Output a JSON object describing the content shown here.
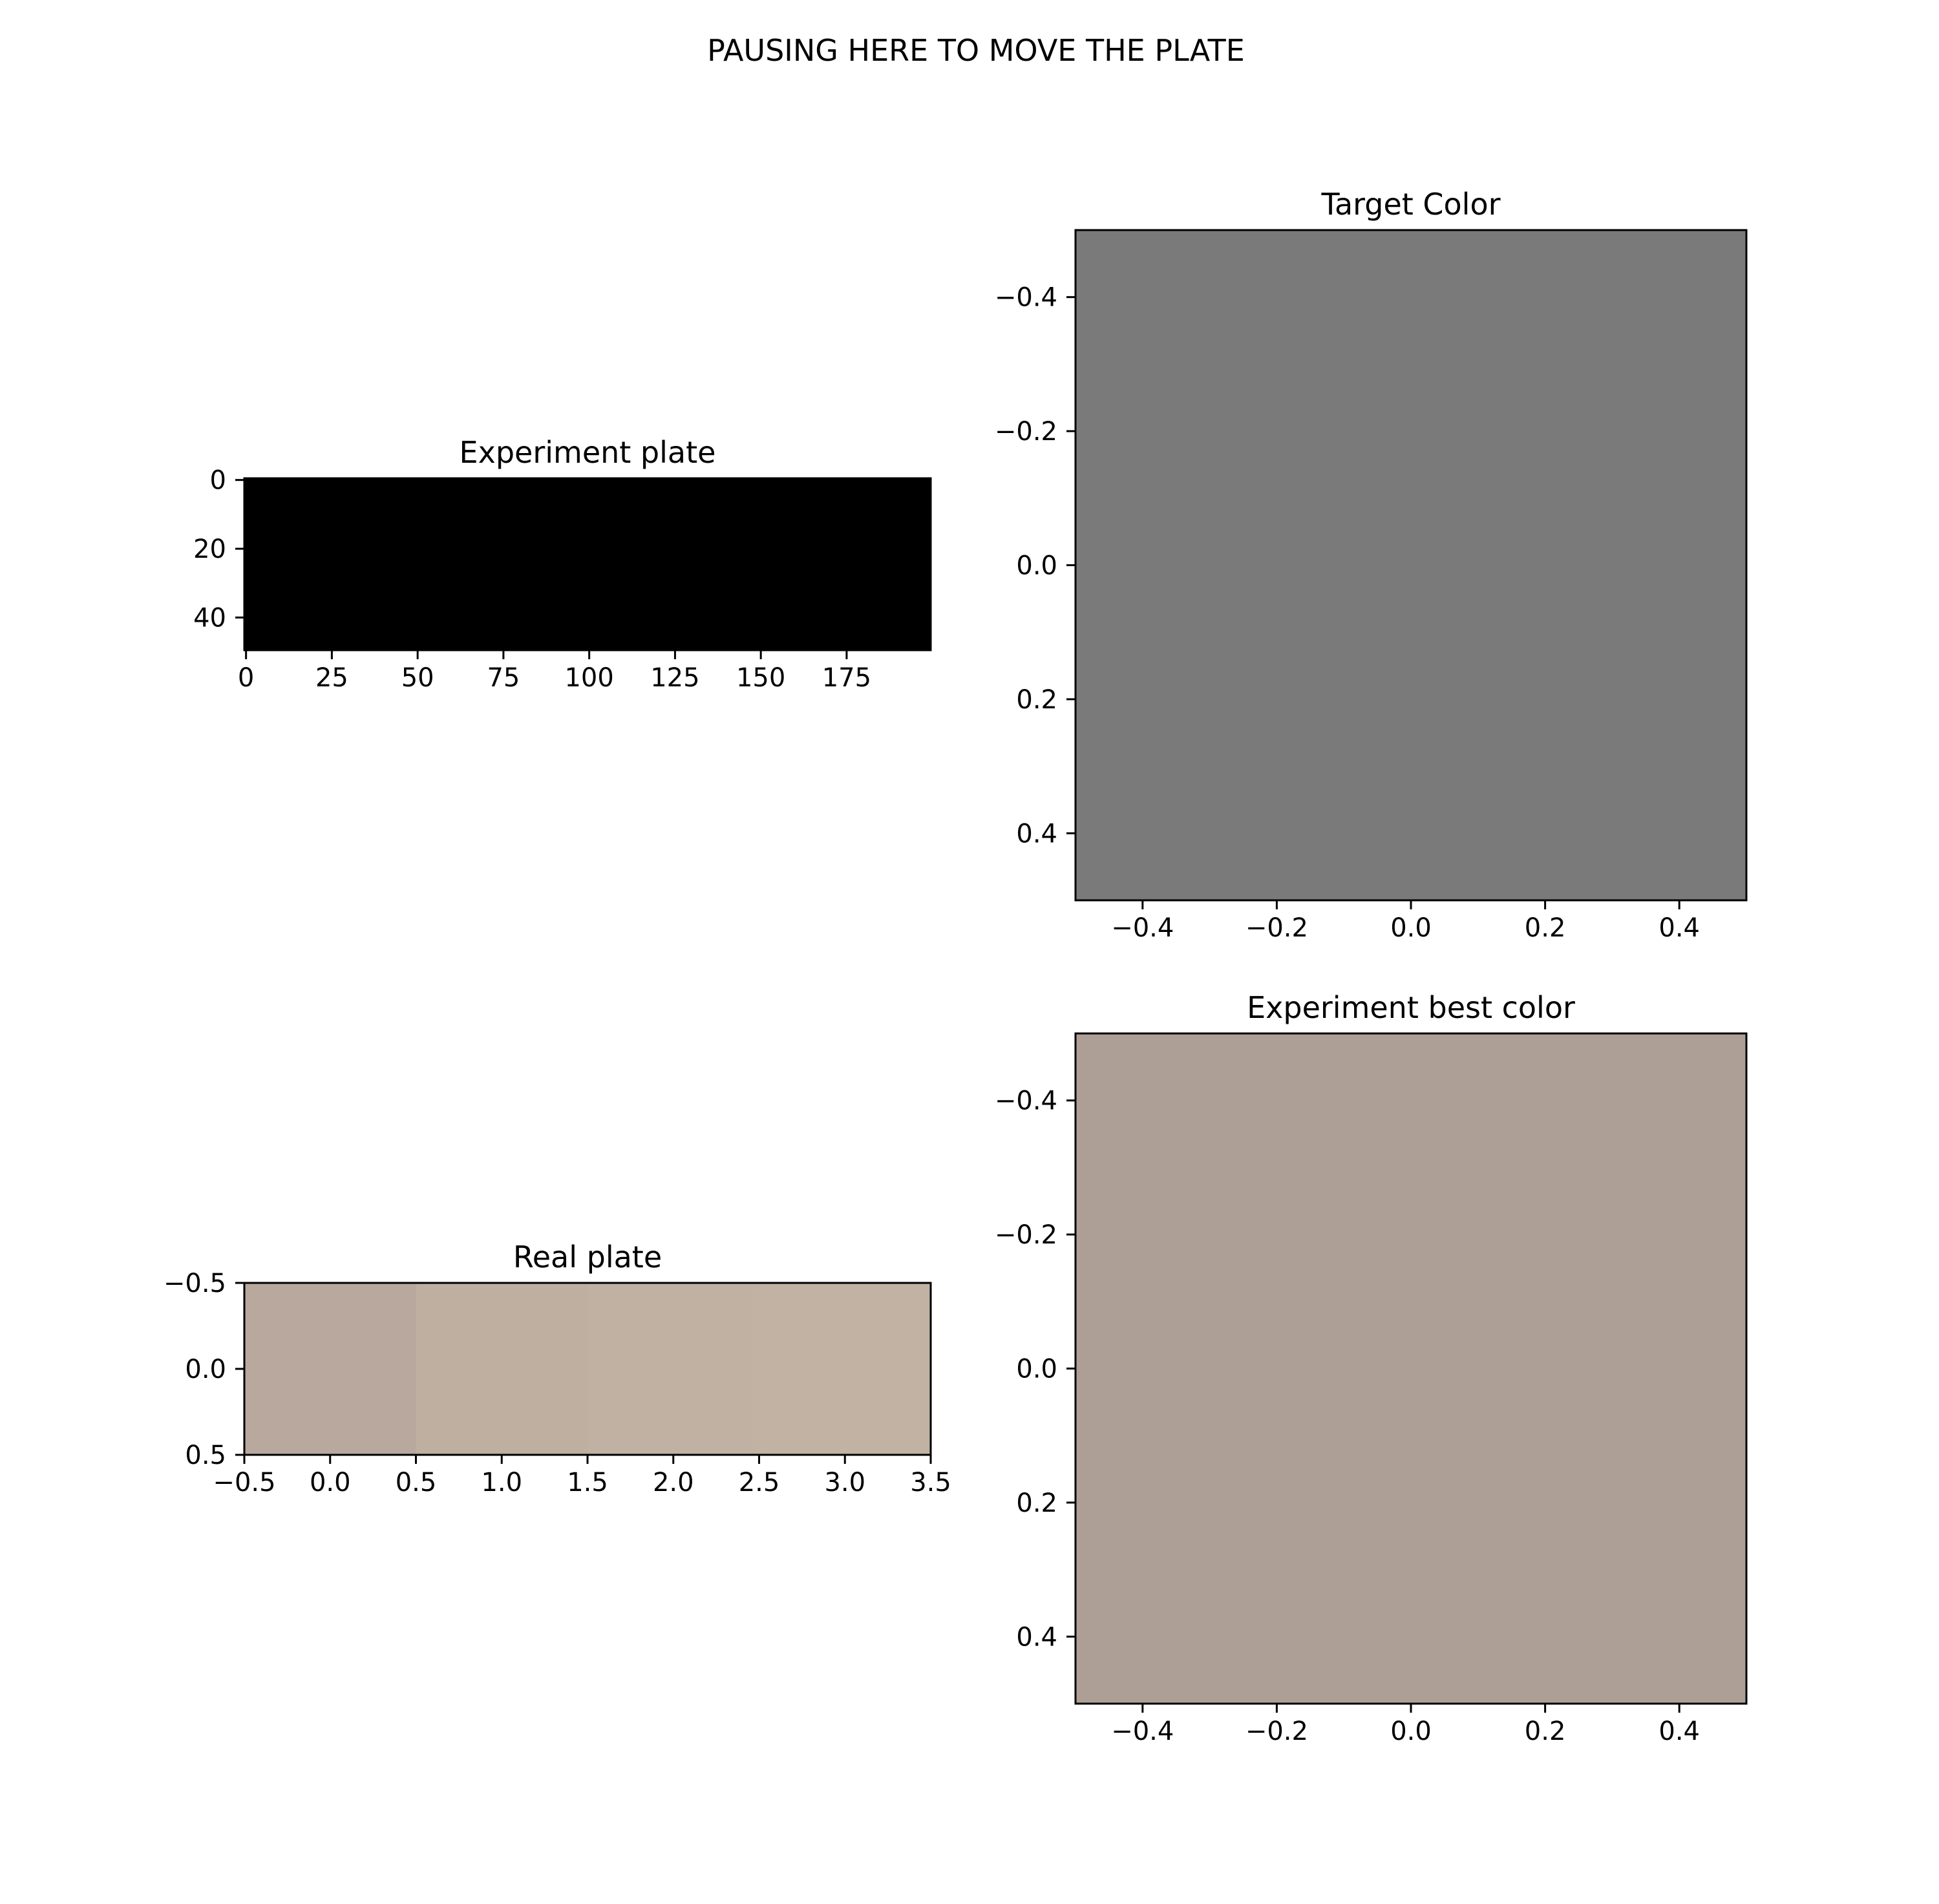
{
  "figure": {
    "suptitle": "PAUSING HERE TO MOVE THE PLATE"
  },
  "chart_data": [
    {
      "id": "experiment_plate",
      "type": "heatmap",
      "title": "Experiment plate",
      "xlim": [
        -0.5,
        199.5
      ],
      "ylim": [
        49.5,
        -0.5
      ],
      "x_ticks": [
        0,
        25,
        50,
        75,
        100,
        125,
        150,
        175
      ],
      "x_tick_labels": [
        "0",
        "25",
        "50",
        "75",
        "100",
        "125",
        "150",
        "175"
      ],
      "y_ticks": [
        0,
        20,
        40
      ],
      "y_tick_labels": [
        "0",
        "20",
        "40"
      ],
      "cells": [
        {
          "x0": -0.5,
          "x1": 199.5,
          "y0": -0.5,
          "y1": 49.5,
          "color": "#000000"
        }
      ]
    },
    {
      "id": "target_color",
      "type": "heatmap",
      "title": "Target Color",
      "xlim": [
        -0.5,
        0.5
      ],
      "ylim": [
        0.5,
        -0.5
      ],
      "x_ticks": [
        -0.4,
        -0.2,
        0.0,
        0.2,
        0.4
      ],
      "x_tick_labels": [
        "−0.4",
        "−0.2",
        "0.0",
        "0.2",
        "0.4"
      ],
      "y_ticks": [
        -0.4,
        -0.2,
        0.0,
        0.2,
        0.4
      ],
      "y_tick_labels": [
        "−0.4",
        "−0.2",
        "0.0",
        "0.2",
        "0.4"
      ],
      "cells": [
        {
          "x0": -0.5,
          "x1": 0.5,
          "y0": -0.5,
          "y1": 0.5,
          "color": "#7a7a7a"
        }
      ]
    },
    {
      "id": "real_plate",
      "type": "heatmap",
      "title": "Real plate",
      "xlim": [
        -0.5,
        3.5
      ],
      "ylim": [
        0.5,
        -0.5
      ],
      "x_ticks": [
        -0.5,
        0.0,
        0.5,
        1.0,
        1.5,
        2.0,
        2.5,
        3.0,
        3.5
      ],
      "x_tick_labels": [
        "−0.5",
        "0.0",
        "0.5",
        "1.0",
        "1.5",
        "2.0",
        "2.5",
        "3.0",
        "3.5"
      ],
      "y_ticks": [
        -0.5,
        0.0,
        0.5
      ],
      "y_tick_labels": [
        "−0.5",
        "0.0",
        "0.5"
      ],
      "cells": [
        {
          "x0": -0.5,
          "x1": 0.5,
          "y0": -0.5,
          "y1": 0.5,
          "color": "#b9a89d"
        },
        {
          "x0": 0.5,
          "x1": 1.5,
          "y0": -0.5,
          "y1": 0.5,
          "color": "#beafa1"
        },
        {
          "x0": 1.5,
          "x1": 2.5,
          "y0": -0.5,
          "y1": 0.5,
          "color": "#c0b1a3"
        },
        {
          "x0": 2.5,
          "x1": 3.5,
          "y0": -0.5,
          "y1": 0.5,
          "color": "#c1b2a3"
        }
      ]
    },
    {
      "id": "experiment_best_color",
      "type": "heatmap",
      "title": "Experiment best color",
      "xlim": [
        -0.5,
        0.5
      ],
      "ylim": [
        0.5,
        -0.5
      ],
      "x_ticks": [
        -0.4,
        -0.2,
        0.0,
        0.2,
        0.4
      ],
      "x_tick_labels": [
        "−0.4",
        "−0.2",
        "0.0",
        "0.2",
        "0.4"
      ],
      "y_ticks": [
        -0.4,
        -0.2,
        0.0,
        0.2,
        0.4
      ],
      "y_tick_labels": [
        "−0.4",
        "−0.2",
        "0.0",
        "0.2",
        "0.4"
      ],
      "cells": [
        {
          "x0": -0.5,
          "x1": 0.5,
          "y0": -0.5,
          "y1": 0.5,
          "color": "#ad9f95"
        }
      ]
    }
  ]
}
